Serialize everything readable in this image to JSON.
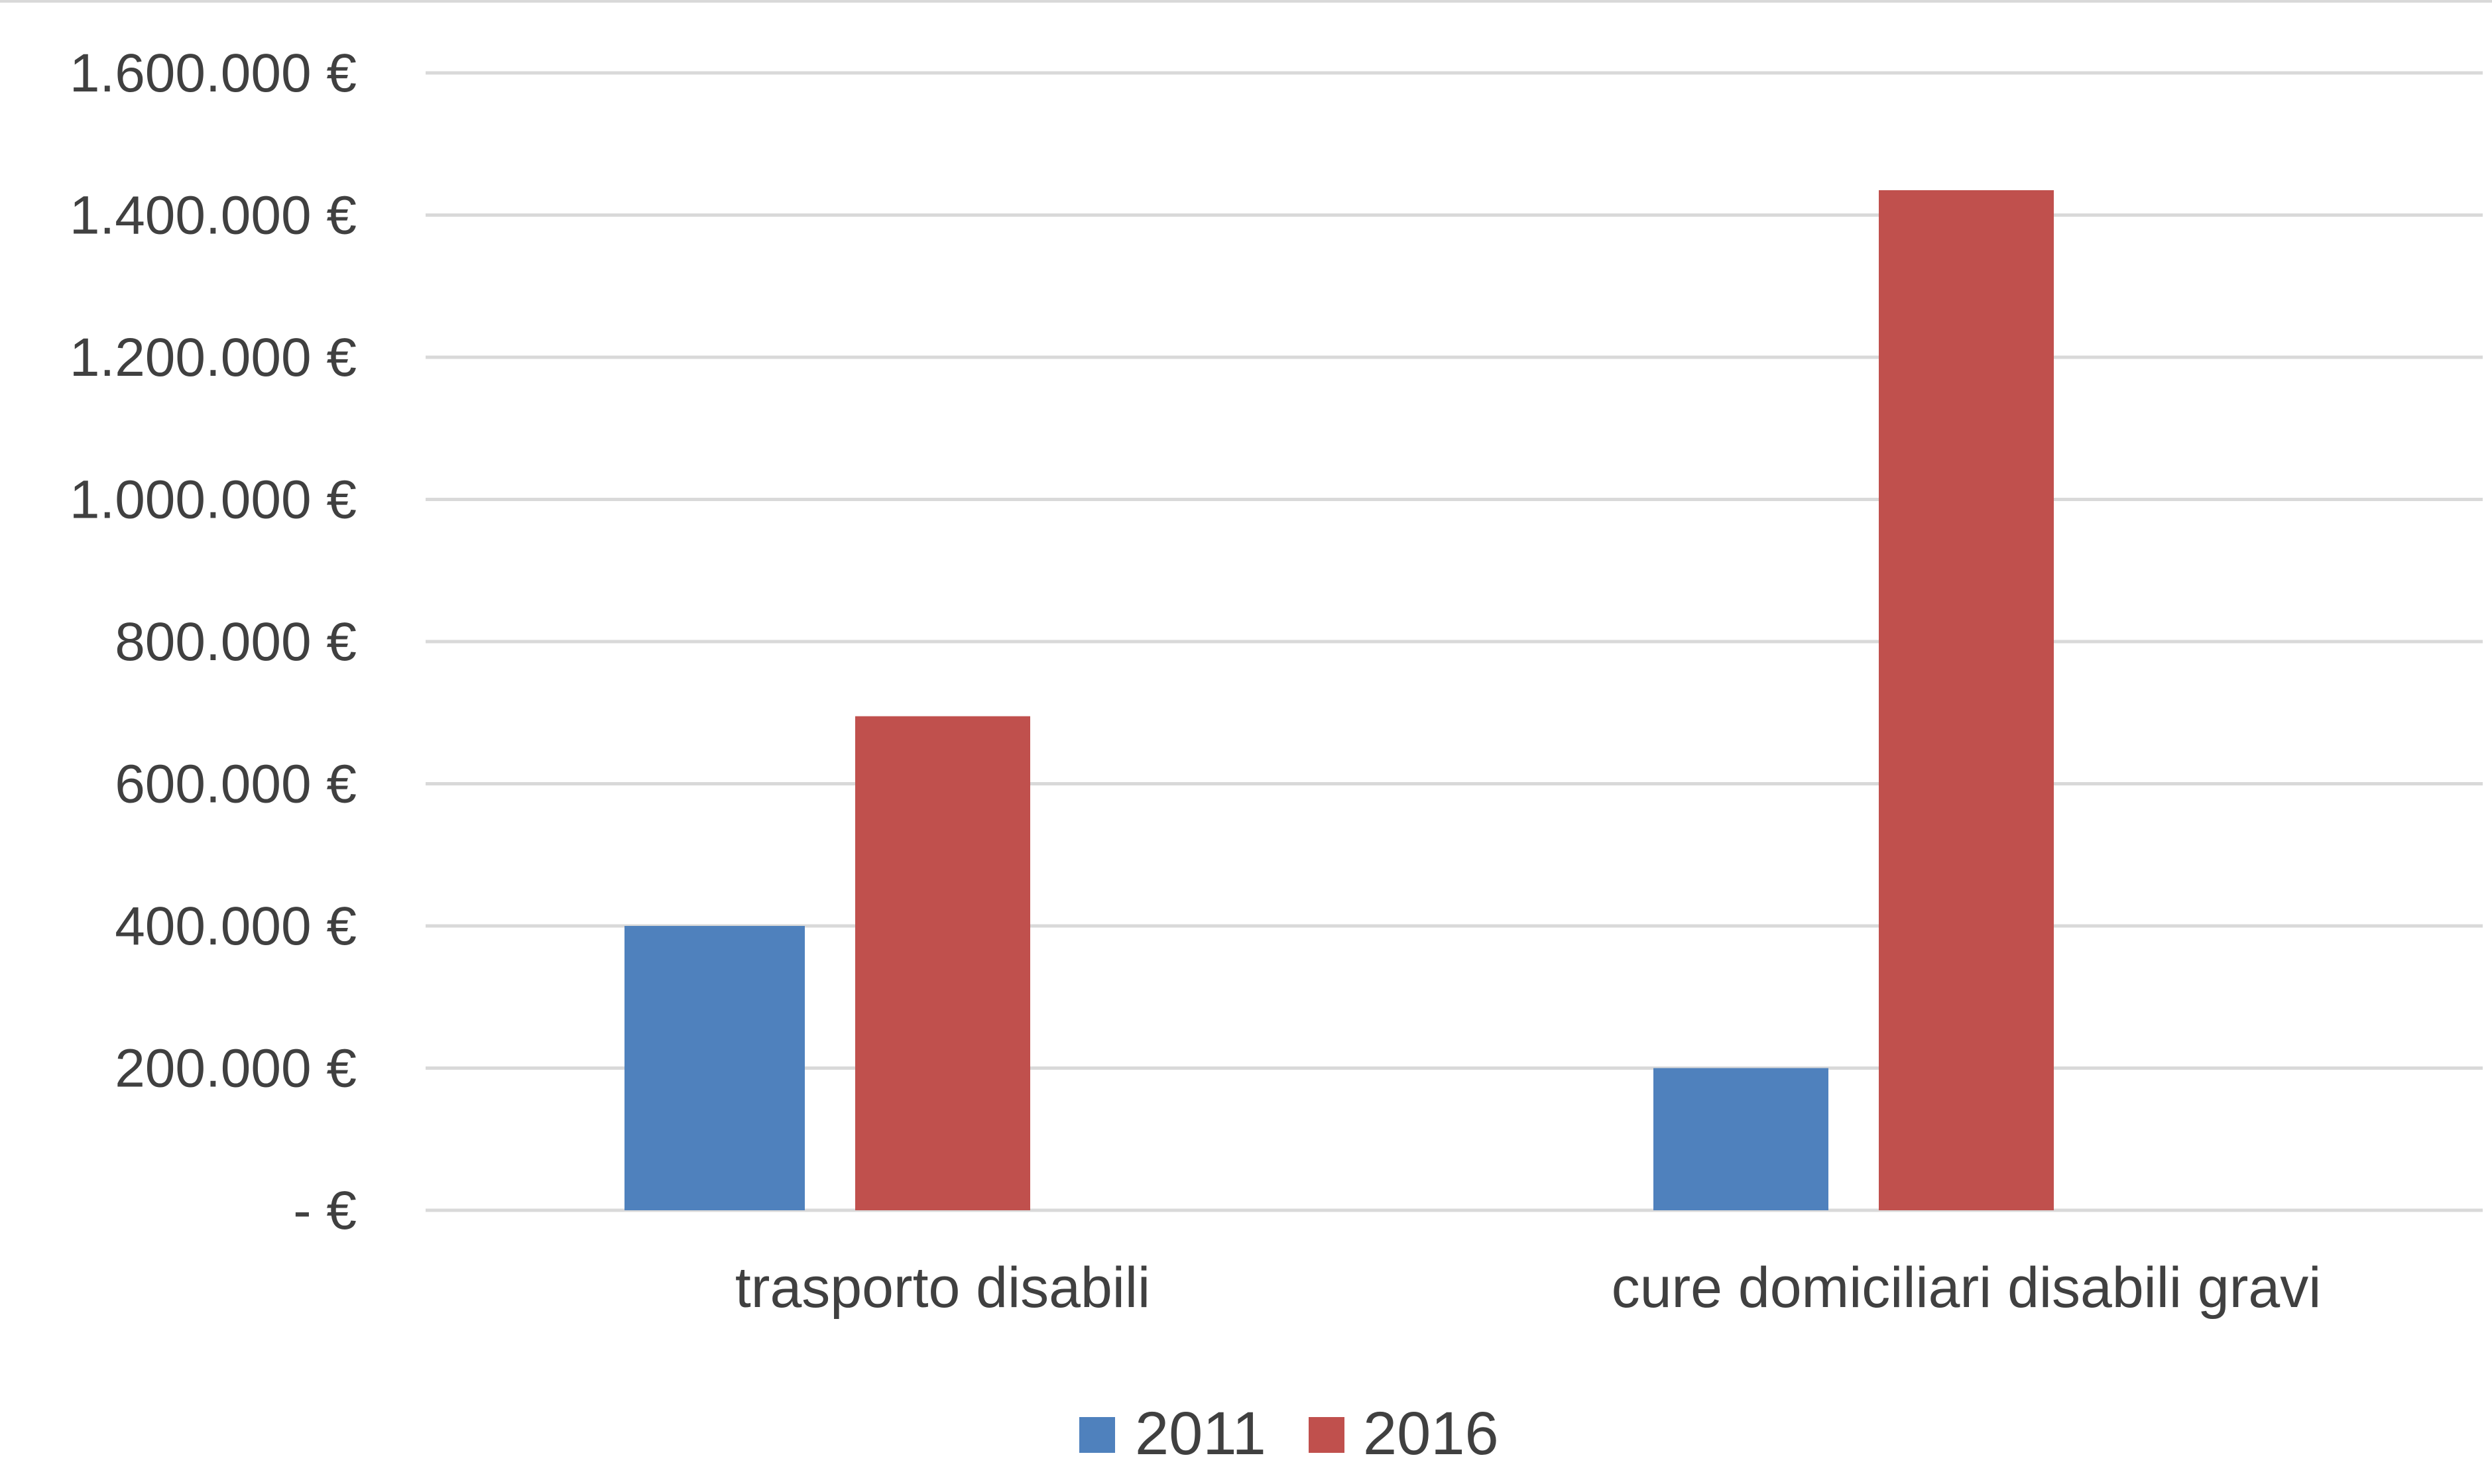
{
  "chart_data": {
    "type": "bar",
    "title": "",
    "xlabel": "",
    "ylabel": "",
    "categories": [
      "trasporto disabili",
      "cure domiciliari disabili gravi"
    ],
    "series": [
      {
        "name": "2011",
        "values": [
          400000,
          200000
        ],
        "color": "#4f81bd"
      },
      {
        "name": "2016",
        "values": [
          695000,
          1435000
        ],
        "color": "#c0504d"
      }
    ],
    "ylim": [
      0,
      1600000
    ],
    "y_ticks": [
      0,
      200000,
      400000,
      600000,
      800000,
      1000000,
      1200000,
      1400000,
      1600000
    ],
    "y_tick_labels": [
      "-  €",
      "200.000 €",
      "400.000 €",
      "600.000 €",
      "800.000 €",
      "1.000.000 €",
      "1.200.000 €",
      "1.400.000 €",
      "1.600.000 €"
    ],
    "grid": true,
    "legend_position": "bottom"
  }
}
